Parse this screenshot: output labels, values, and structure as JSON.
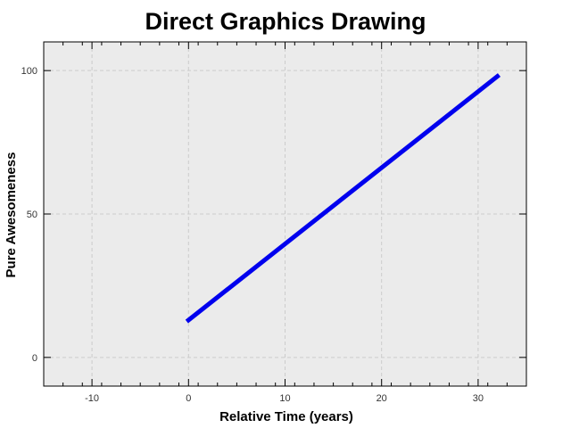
{
  "chart_data": {
    "type": "line",
    "title": "Direct Graphics Drawing",
    "xlabel": "Relative Time (years)",
    "ylabel": "Pure Awesomeness",
    "xlim": [
      -15,
      35
    ],
    "ylim": [
      -10,
      110
    ],
    "x_ticks": [
      -10,
      0,
      10,
      20,
      30
    ],
    "y_ticks": [
      0,
      50,
      100
    ],
    "x_tick_labels": [
      "-10",
      "0",
      "10",
      "20",
      "30"
    ],
    "y_tick_labels": [
      "0",
      "50",
      "100"
    ],
    "grid": true,
    "series": [
      {
        "color": "#0000ee",
        "x": [
          0,
          32
        ],
        "y": [
          13,
          98
        ]
      }
    ],
    "colors": {
      "plot_background": "#ebebeb",
      "grid": "#cccccc",
      "line": "#0000ee"
    }
  }
}
